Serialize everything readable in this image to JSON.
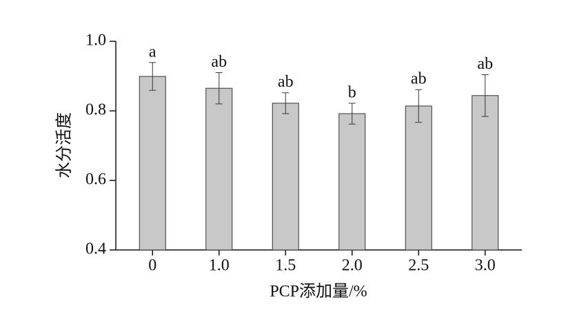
{
  "chart_data": {
    "type": "bar",
    "x_label": "PCP添加量/%",
    "y_label": "水分活度",
    "categories": [
      "0",
      "1.0",
      "1.5",
      "2.0",
      "2.5",
      "3.0"
    ],
    "values": [
      0.899,
      0.865,
      0.822,
      0.792,
      0.814,
      0.844
    ],
    "errors": [
      0.04,
      0.045,
      0.03,
      0.03,
      0.047,
      0.06
    ],
    "letters": [
      "a",
      "ab",
      "ab",
      "b",
      "ab",
      "ab"
    ],
    "color": "#c8c8c8",
    "ylim": [
      0.4,
      1.0
    ],
    "yticks": [
      0.4,
      0.6,
      0.8,
      {
        "value": 1.0,
        "label": "1.0"
      }
    ]
  }
}
